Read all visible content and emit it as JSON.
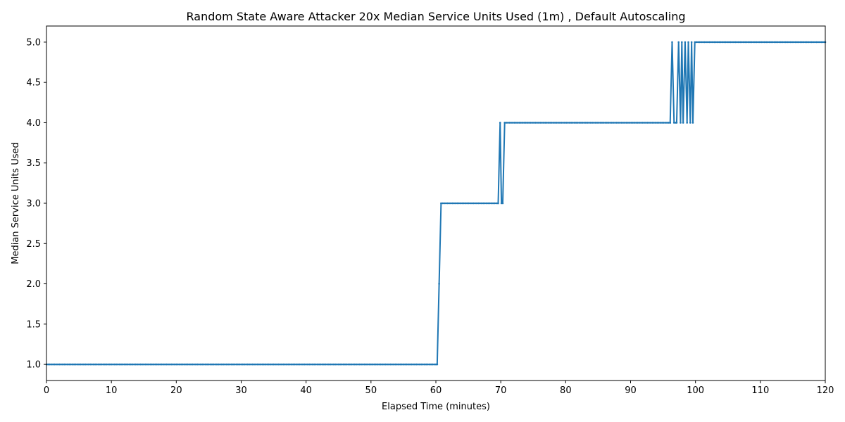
{
  "chart_data": {
    "type": "line",
    "title": "Random State Aware Attacker 20x Median Service Units Used (1m) , Default Autoscaling",
    "xlabel": "Elapsed Time (minutes)",
    "ylabel": "Median Service Units Used",
    "xlim": [
      0,
      120
    ],
    "ylim": [
      0.8,
      5.2
    ],
    "xticks": [
      0,
      10,
      20,
      30,
      40,
      50,
      60,
      70,
      80,
      90,
      100,
      110,
      120
    ],
    "yticks": [
      1.0,
      1.5,
      2.0,
      2.5,
      3.0,
      3.5,
      4.0,
      4.5,
      5.0
    ],
    "xtick_labels": [
      "0",
      "10",
      "20",
      "30",
      "40",
      "50",
      "60",
      "70",
      "80",
      "90",
      "100",
      "110",
      "120"
    ],
    "ytick_labels": [
      "1.0",
      "1.5",
      "2.0",
      "2.5",
      "3.0",
      "3.5",
      "4.0",
      "4.5",
      "5.0"
    ],
    "grid": false,
    "series_color": "#1f77b4",
    "series": [
      {
        "segments": [
          {
            "x_start": 0,
            "x_end": 60.2,
            "y": 1
          },
          {
            "x_start": 60.5,
            "x_end": 60.5,
            "y": 2
          },
          {
            "x_start": 60.8,
            "x_end": 69.6,
            "y": 3
          },
          {
            "x_start": 69.9,
            "x_end": 69.9,
            "y": 4
          },
          {
            "x_start": 70.1,
            "x_end": 70.3,
            "y": 3
          },
          {
            "x_start": 70.6,
            "x_end": 96.1,
            "y": 4
          },
          {
            "x_start": 96.4,
            "x_end": 96.4,
            "y": 5
          },
          {
            "x_start": 96.7,
            "x_end": 97.1,
            "y": 4
          },
          {
            "x_start": 97.4,
            "x_end": 97.4,
            "y": 5
          },
          {
            "x_start": 97.7,
            "x_end": 97.7,
            "y": 4
          },
          {
            "x_start": 97.9,
            "x_end": 97.9,
            "y": 5
          },
          {
            "x_start": 98.1,
            "x_end": 98.1,
            "y": 4
          },
          {
            "x_start": 98.4,
            "x_end": 98.4,
            "y": 5
          },
          {
            "x_start": 98.7,
            "x_end": 98.7,
            "y": 4
          },
          {
            "x_start": 98.9,
            "x_end": 98.9,
            "y": 5
          },
          {
            "x_start": 99.2,
            "x_end": 99.2,
            "y": 4
          },
          {
            "x_start": 99.4,
            "x_end": 99.4,
            "y": 5
          },
          {
            "x_start": 99.6,
            "x_end": 99.6,
            "y": 4
          },
          {
            "x_start": 99.9,
            "x_end": 120,
            "y": 5
          }
        ]
      }
    ]
  }
}
